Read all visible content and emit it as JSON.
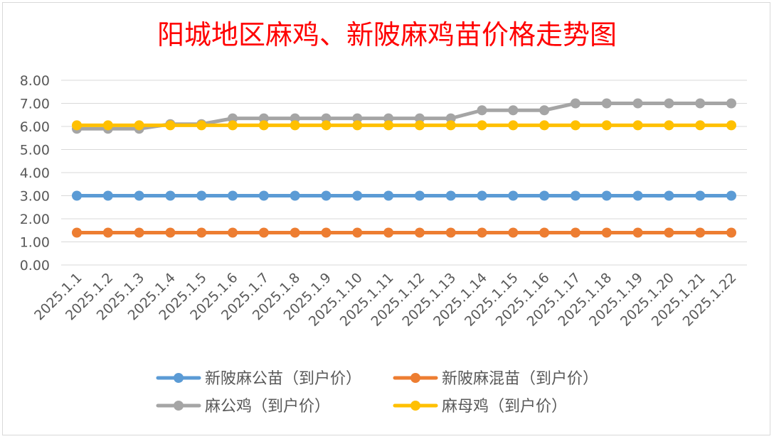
{
  "chart_data": {
    "type": "line",
    "title": "阳城地区麻鸡、新陂麻鸡苗价格走势图",
    "xlabel": "",
    "ylabel": "",
    "ylim": [
      0,
      8
    ],
    "yticks": [
      "0.00",
      "1.00",
      "2.00",
      "3.00",
      "4.00",
      "5.00",
      "6.00",
      "7.00",
      "8.00"
    ],
    "grid": true,
    "legend_position": "bottom",
    "categories": [
      "2025.1.1",
      "2025.1.2",
      "2025.1.3",
      "2025.1.4",
      "2025.1.5",
      "2025.1.6",
      "2025.1.7",
      "2025.1.8",
      "2025.1.9",
      "2025.1.10",
      "2025.1.11",
      "2025.1.12",
      "2025.1.13",
      "2025.1.14",
      "2025.1.15",
      "2025.1.16",
      "2025.1.17",
      "2025.1.18",
      "2025.1.19",
      "2025.1.20",
      "2025.1.21",
      "2025.1.22"
    ],
    "series": [
      {
        "name": "新陂麻公苗（到户价）",
        "color": "#5b9bd5",
        "values": [
          3,
          3,
          3,
          3,
          3,
          3,
          3,
          3,
          3,
          3,
          3,
          3,
          3,
          3,
          3,
          3,
          3,
          3,
          3,
          3,
          3,
          3
        ]
      },
      {
        "name": "新陂麻混苗（到户价）",
        "color": "#ed7d31",
        "values": [
          1.4,
          1.4,
          1.4,
          1.4,
          1.4,
          1.4,
          1.4,
          1.4,
          1.4,
          1.4,
          1.4,
          1.4,
          1.4,
          1.4,
          1.4,
          1.4,
          1.4,
          1.4,
          1.4,
          1.4,
          1.4,
          1.4
        ]
      },
      {
        "name": "麻公鸡（到户价）",
        "color": "#a5a5a5",
        "values": [
          5.9,
          5.9,
          5.9,
          6.1,
          6.1,
          6.35,
          6.35,
          6.35,
          6.35,
          6.35,
          6.35,
          6.35,
          6.35,
          6.7,
          6.7,
          6.7,
          7,
          7,
          7,
          7,
          7,
          7
        ]
      },
      {
        "name": "麻母鸡（到户价）",
        "color": "#ffc000",
        "values": [
          6.05,
          6.05,
          6.05,
          6.05,
          6.05,
          6.05,
          6.05,
          6.05,
          6.05,
          6.05,
          6.05,
          6.05,
          6.05,
          6.05,
          6.05,
          6.05,
          6.05,
          6.05,
          6.05,
          6.05,
          6.05,
          6.05
        ]
      }
    ]
  }
}
